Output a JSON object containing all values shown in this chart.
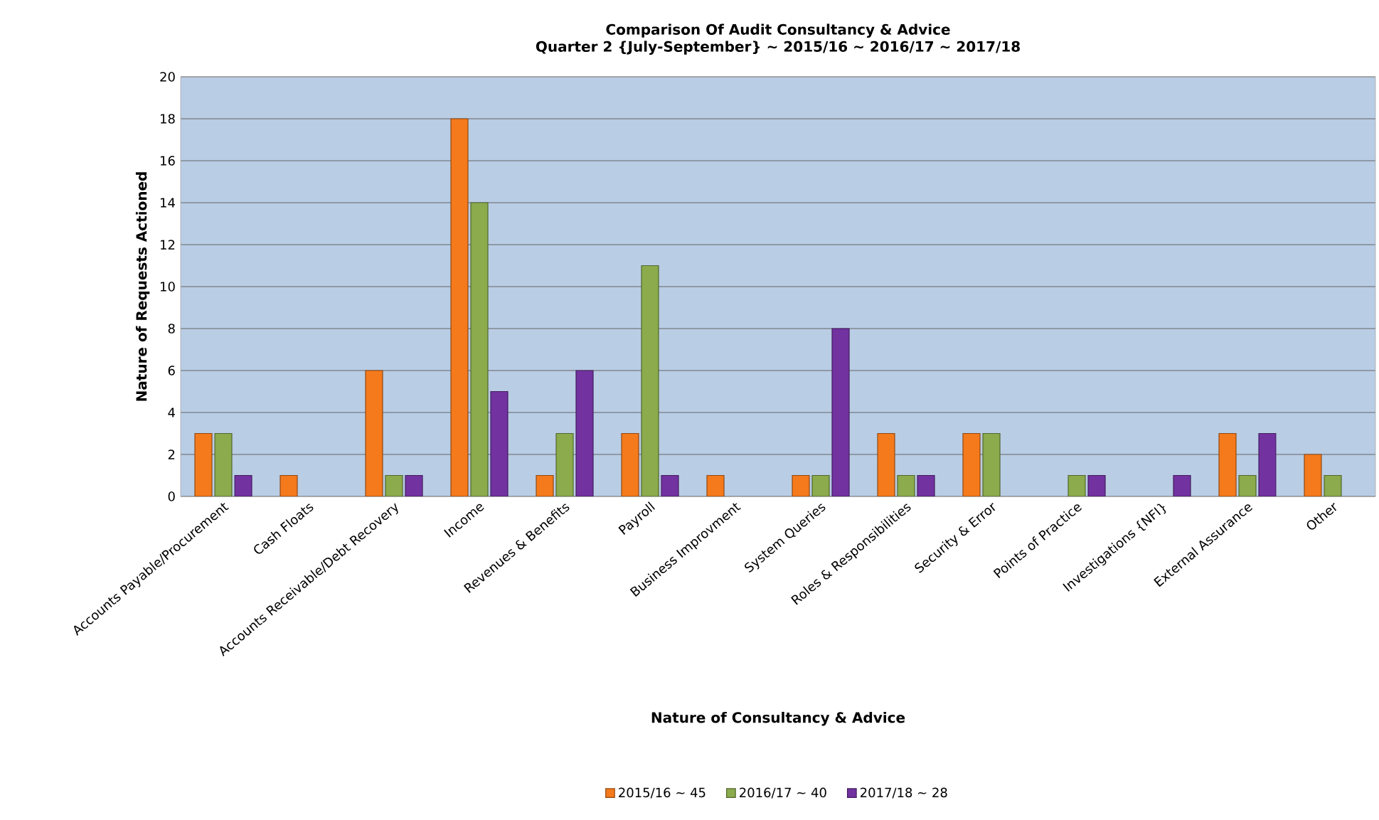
{
  "chart_data": {
    "type": "bar",
    "title": "Comparison Of Audit Consultancy & Advice",
    "subtitle": "Quarter 2 {July-September} ~ 2015/16 ~ 2016/17 ~ 2017/18",
    "xlabel": "Nature of Consultancy & Advice",
    "ylabel": "Nature of Requests Actioned",
    "categories": [
      "Accounts Payable/Procurement",
      "Cash Floats",
      "Accounts Receivable/Debt Recovery",
      "Income",
      "Revenues & Benefits",
      "Payroll",
      "Business Improvment",
      "System Queries",
      "Roles & Responsibilities",
      "Security & Error",
      "Points of Practice",
      "Investigations {NFI}",
      "External Assurance",
      "Other"
    ],
    "series": [
      {
        "name": "2015/16 ~ 45",
        "color": "#f47a1c",
        "values": [
          3,
          1,
          6,
          18,
          1,
          3,
          1,
          1,
          3,
          3,
          0,
          0,
          3,
          2
        ]
      },
      {
        "name": "2016/17 ~ 40",
        "color": "#8bab4c",
        "values": [
          3,
          0,
          1,
          14,
          3,
          11,
          0,
          1,
          1,
          3,
          1,
          0,
          1,
          1
        ]
      },
      {
        "name": "2017/18 ~ 28",
        "color": "#7232a0",
        "values": [
          1,
          0,
          1,
          5,
          6,
          1,
          0,
          8,
          1,
          0,
          1,
          1,
          3,
          0
        ]
      }
    ],
    "ylim": [
      0,
      20
    ],
    "yticks": [
      0,
      2,
      4,
      6,
      8,
      10,
      12,
      14,
      16,
      18,
      20
    ],
    "grid": "y",
    "legend": "bottom"
  }
}
